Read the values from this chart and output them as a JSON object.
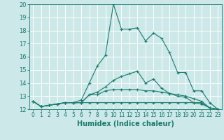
{
  "xlabel": "Humidex (Indice chaleur)",
  "xlim": [
    -0.5,
    23.5
  ],
  "ylim": [
    12,
    20
  ],
  "yticks": [
    12,
    13,
    14,
    15,
    16,
    17,
    18,
    19,
    20
  ],
  "xticks": [
    0,
    1,
    2,
    3,
    4,
    5,
    6,
    7,
    8,
    9,
    10,
    11,
    12,
    13,
    14,
    15,
    16,
    17,
    18,
    19,
    20,
    21,
    22,
    23
  ],
  "bg_color": "#cce8e8",
  "line_color": "#1a7a6e",
  "grid_color": "#ffffff",
  "series": [
    [
      12.6,
      12.2,
      12.3,
      12.4,
      12.5,
      12.5,
      12.7,
      14.0,
      15.3,
      16.1,
      20.0,
      18.1,
      18.1,
      18.2,
      17.2,
      17.8,
      17.4,
      16.3,
      14.8,
      14.8,
      13.4,
      13.4,
      12.5,
      12.0
    ],
    [
      12.6,
      12.2,
      12.3,
      12.4,
      12.5,
      12.5,
      12.5,
      13.1,
      13.3,
      13.7,
      14.2,
      14.5,
      14.7,
      14.9,
      14.0,
      14.3,
      13.6,
      13.2,
      13.0,
      12.9,
      12.5,
      12.4,
      12.1,
      12.0
    ],
    [
      12.6,
      12.2,
      12.3,
      12.4,
      12.5,
      12.5,
      12.5,
      12.5,
      12.5,
      12.5,
      12.5,
      12.5,
      12.5,
      12.5,
      12.5,
      12.5,
      12.5,
      12.5,
      12.5,
      12.5,
      12.5,
      12.5,
      12.1,
      12.0
    ],
    [
      12.6,
      12.2,
      12.3,
      12.4,
      12.5,
      12.5,
      12.5,
      13.1,
      13.1,
      13.4,
      13.5,
      13.5,
      13.5,
      13.5,
      13.4,
      13.4,
      13.3,
      13.2,
      13.1,
      13.0,
      12.8,
      12.6,
      12.1,
      12.0
    ]
  ]
}
